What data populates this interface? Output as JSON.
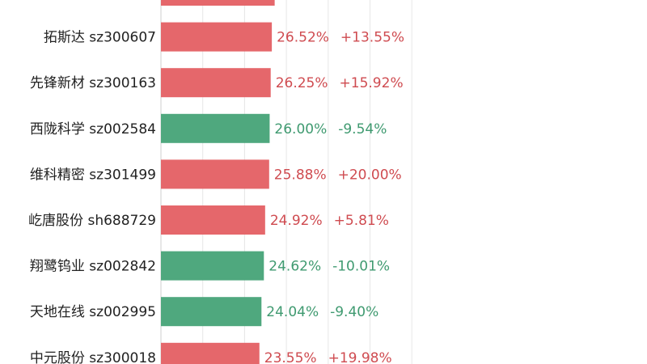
{
  "chart_data": {
    "type": "bar",
    "orientation": "horizontal",
    "grid": true,
    "colors": {
      "up": "#e5676b",
      "down": "#4fa87e",
      "up_text": "#cf4b50",
      "down_text": "#3f9a70"
    },
    "xlim": [
      0,
      40
    ],
    "rows": [
      {
        "name": "",
        "code": "",
        "value": 27.2,
        "change": "",
        "direction": "up",
        "partial": true
      },
      {
        "name": "拓斯达",
        "code": "sz300607",
        "value": 26.52,
        "value_label": "26.52%",
        "change": "+13.55%",
        "direction": "up"
      },
      {
        "name": "先锋新材",
        "code": "sz300163",
        "value": 26.25,
        "value_label": "26.25%",
        "change": "+15.92%",
        "direction": "up"
      },
      {
        "name": "西陇科学",
        "code": "sz002584",
        "value": 26.0,
        "value_label": "26.00%",
        "change": "-9.54%",
        "direction": "down"
      },
      {
        "name": "维科精密",
        "code": "sz301499",
        "value": 25.88,
        "value_label": "25.88%",
        "change": "+20.00%",
        "direction": "up"
      },
      {
        "name": "屹唐股份",
        "code": "sh688729",
        "value": 24.92,
        "value_label": "24.92%",
        "change": "+5.81%",
        "direction": "up"
      },
      {
        "name": "翔鹭钨业",
        "code": "sz002842",
        "value": 24.62,
        "value_label": "24.62%",
        "change": "-10.01%",
        "direction": "down"
      },
      {
        "name": "天地在线",
        "code": "sz002995",
        "value": 24.04,
        "value_label": "24.04%",
        "change": "-9.40%",
        "direction": "down"
      },
      {
        "name": "中元股份",
        "code": "sz300018",
        "value": 23.55,
        "value_label": "23.55%",
        "change": "+19.98%",
        "direction": "up"
      }
    ]
  }
}
